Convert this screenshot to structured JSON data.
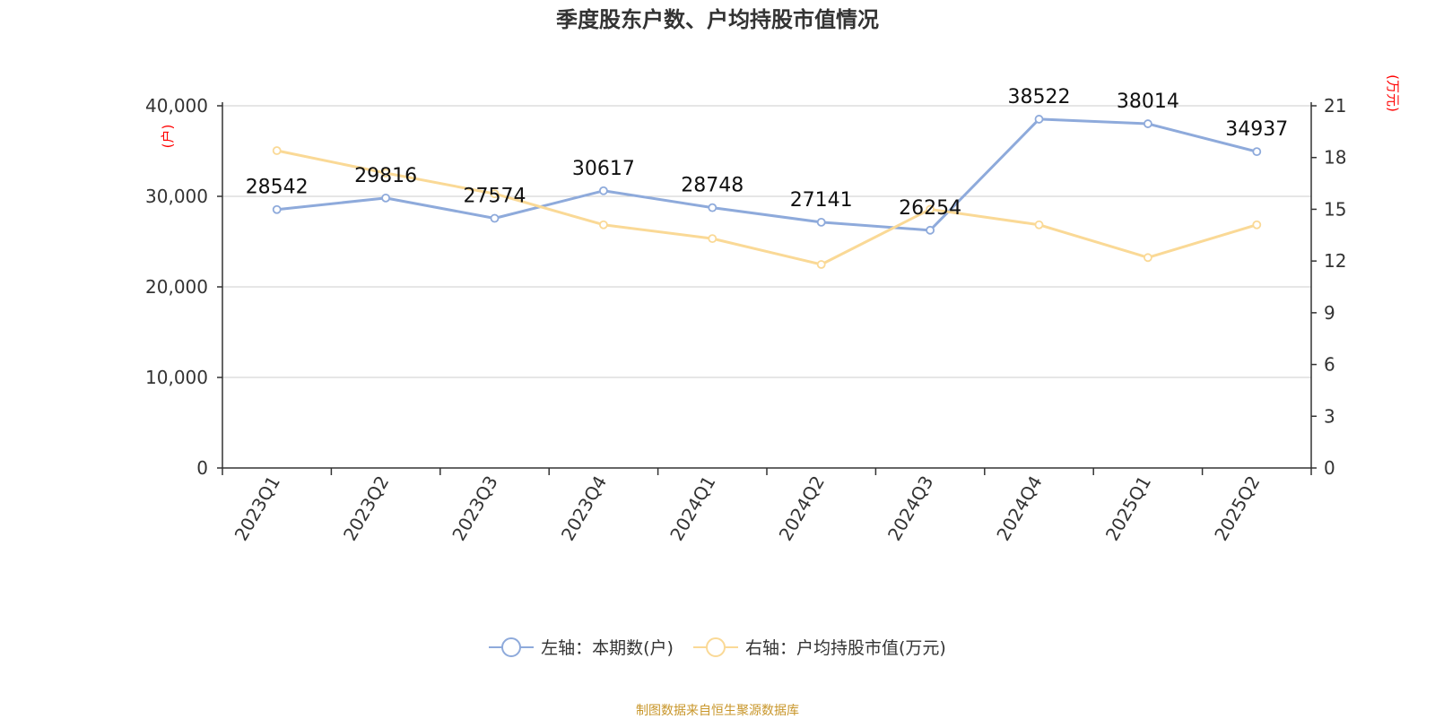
{
  "chart_data": {
    "type": "line",
    "title": "季度股东户数、户均持股市值情况",
    "categories": [
      "2023Q1",
      "2023Q2",
      "2023Q3",
      "2023Q4",
      "2024Q1",
      "2024Q2",
      "2024Q3",
      "2024Q4",
      "2025Q1",
      "2025Q2"
    ],
    "series": [
      {
        "name": "左轴：本期数(户)",
        "axis": "left",
        "color": "#8eaadb",
        "values": [
          28542,
          29816,
          27574,
          30617,
          28748,
          27141,
          26254,
          38522,
          38014,
          34937
        ],
        "labels": [
          "28542",
          "29816",
          "27574",
          "30617",
          "28748",
          "27141",
          "26254",
          "38522",
          "38014",
          "34937"
        ]
      },
      {
        "name": "右轴：户均持股市值(万元)",
        "axis": "right",
        "color": "#fad996",
        "values": [
          18.4,
          17.1,
          15.9,
          14.1,
          13.3,
          11.8,
          15.0,
          14.1,
          12.2,
          14.1
        ]
      }
    ],
    "left_axis": {
      "unit_label": "(户)",
      "ylim": [
        0,
        40000
      ],
      "ticks": [
        "0",
        "10,000",
        "20,000",
        "30,000",
        "40,000"
      ]
    },
    "right_axis": {
      "unit_label": "(万元)",
      "ylim": [
        0,
        21
      ],
      "ticks": [
        "0",
        "3",
        "6",
        "9",
        "12",
        "15",
        "18",
        "21"
      ]
    },
    "grid": true,
    "legend_position": "bottom-center"
  },
  "source_text": "制图数据来自恒生聚源数据库",
  "source_color": "#c8962a",
  "axis_unit_color": "#ff0000"
}
